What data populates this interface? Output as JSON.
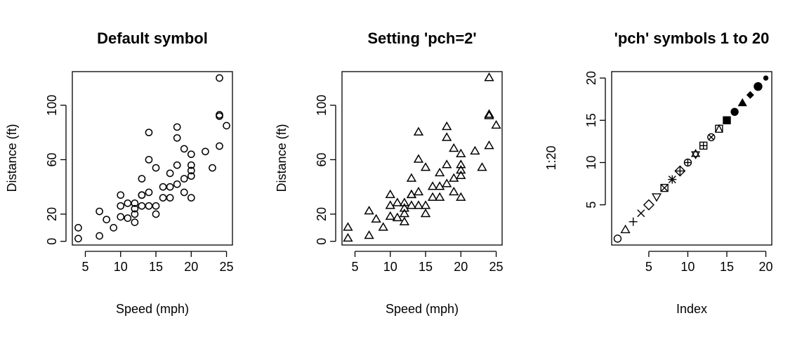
{
  "chart_data": [
    {
      "type": "scatter",
      "title": "Default symbol",
      "xlabel": "Speed (mph)",
      "ylabel": "Distance (ft)",
      "xlim": [
        4,
        25
      ],
      "ylim": [
        2,
        120
      ],
      "xticks": [
        5,
        10,
        15,
        20,
        25
      ],
      "yticks": [
        0,
        20,
        60,
        100
      ],
      "marker": "open-circle",
      "series": [
        {
          "x": [
            4,
            4,
            7,
            7,
            8,
            9,
            10,
            10,
            10,
            11,
            11,
            12,
            12,
            12,
            12,
            13,
            13,
            13,
            13,
            14,
            14,
            14,
            14,
            15,
            15,
            15,
            16,
            16,
            17,
            17,
            17,
            18,
            18,
            18,
            18,
            19,
            19,
            19,
            20,
            20,
            20,
            20,
            20,
            22,
            23,
            24,
            24,
            24,
            24,
            25
          ],
          "y": [
            2,
            10,
            4,
            22,
            16,
            10,
            18,
            26,
            34,
            17,
            28,
            14,
            20,
            24,
            28,
            26,
            34,
            34,
            46,
            26,
            36,
            60,
            80,
            20,
            26,
            54,
            32,
            40,
            32,
            40,
            50,
            42,
            56,
            76,
            84,
            36,
            46,
            68,
            32,
            48,
            52,
            56,
            64,
            66,
            54,
            70,
            92,
            93,
            120,
            85
          ]
        }
      ]
    },
    {
      "type": "scatter",
      "title": "Setting 'pch=2'",
      "xlabel": "Speed (mph)",
      "ylabel": "Distance (ft)",
      "xlim": [
        4,
        25
      ],
      "ylim": [
        2,
        120
      ],
      "xticks": [
        5,
        10,
        15,
        20,
        25
      ],
      "yticks": [
        0,
        20,
        60,
        100
      ],
      "marker": "open-triangle",
      "series": [
        {
          "x": [
            4,
            4,
            7,
            7,
            8,
            9,
            10,
            10,
            10,
            11,
            11,
            12,
            12,
            12,
            12,
            13,
            13,
            13,
            13,
            14,
            14,
            14,
            14,
            15,
            15,
            15,
            16,
            16,
            17,
            17,
            17,
            18,
            18,
            18,
            18,
            19,
            19,
            19,
            20,
            20,
            20,
            20,
            20,
            22,
            23,
            24,
            24,
            24,
            24,
            25
          ],
          "y": [
            2,
            10,
            4,
            22,
            16,
            10,
            18,
            26,
            34,
            17,
            28,
            14,
            20,
            24,
            28,
            26,
            34,
            34,
            46,
            26,
            36,
            60,
            80,
            20,
            26,
            54,
            32,
            40,
            32,
            40,
            50,
            42,
            56,
            76,
            84,
            36,
            46,
            68,
            32,
            48,
            52,
            56,
            64,
            66,
            54,
            70,
            92,
            93,
            120,
            85
          ]
        }
      ]
    },
    {
      "type": "scatter",
      "title": "'pch' symbols 1 to 20",
      "xlabel": "Index",
      "ylabel": "1:20",
      "xlim": [
        1,
        20
      ],
      "ylim": [
        1,
        20
      ],
      "xticks": [
        5,
        10,
        15,
        20
      ],
      "yticks": [
        5,
        10,
        15,
        20
      ],
      "marker": "pch-1-to-20",
      "series": [
        {
          "x": [
            1,
            2,
            3,
            4,
            5,
            6,
            7,
            8,
            9,
            10,
            11,
            12,
            13,
            14,
            15,
            16,
            17,
            18,
            19,
            20
          ],
          "y": [
            1,
            2,
            3,
            4,
            5,
            6,
            7,
            8,
            9,
            10,
            11,
            12,
            13,
            14,
            15,
            16,
            17,
            18,
            19,
            20
          ]
        }
      ]
    }
  ]
}
